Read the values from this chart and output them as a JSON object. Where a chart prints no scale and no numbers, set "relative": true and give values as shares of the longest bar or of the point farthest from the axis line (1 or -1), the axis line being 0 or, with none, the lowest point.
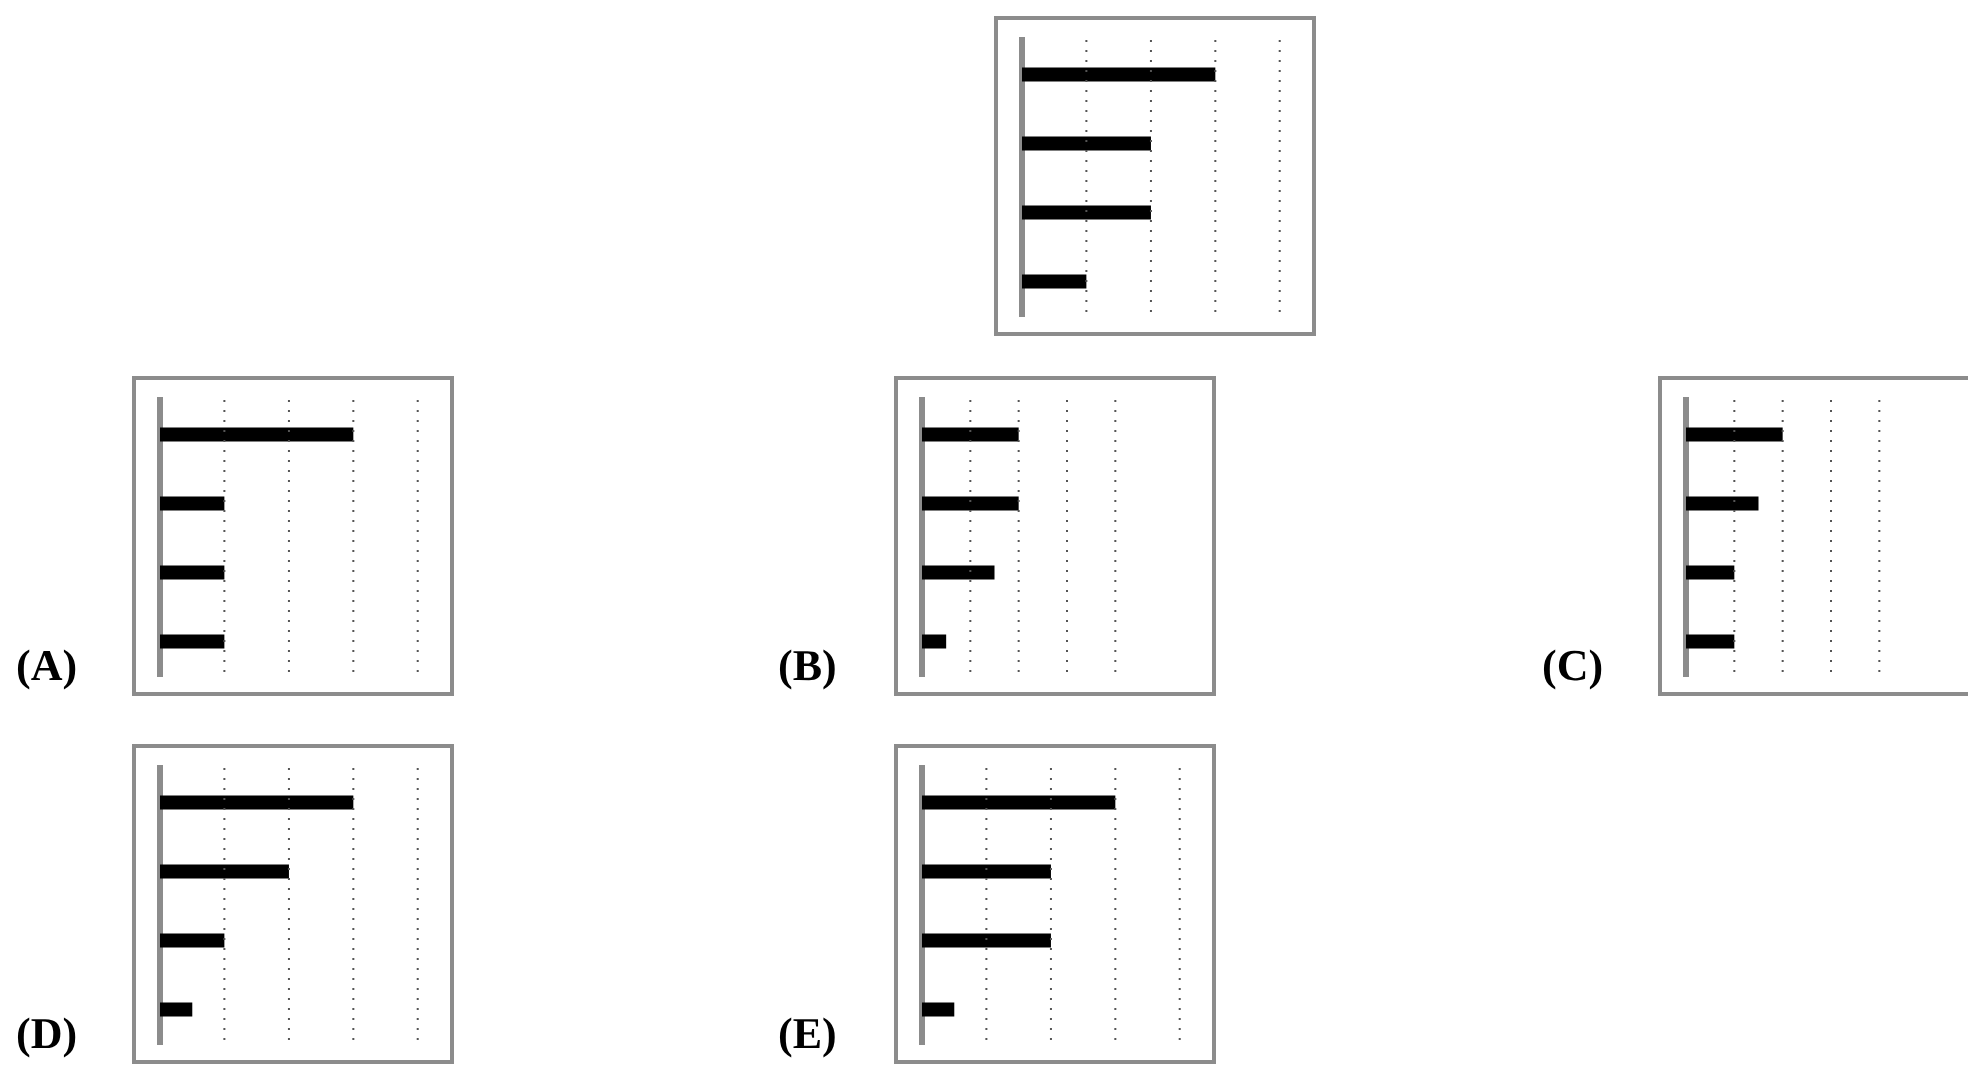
{
  "chart_data": [
    {
      "type": "bar",
      "orientation": "horizontal",
      "relative": true,
      "categories": [
        null,
        null,
        null,
        null
      ],
      "color": "#000000",
      "values": [
        1,
        0.667,
        0.667,
        0.333
      ],
      "ref_lines": [
        {
          "axis": "x",
          "value": 0.333,
          "line_style": "dotted",
          "color": "#555555"
        },
        {
          "axis": "x",
          "value": 0.667,
          "line_style": "dotted",
          "color": "#555555"
        },
        {
          "axis": "x",
          "value": 1,
          "line_style": "dotted",
          "color": "#555555"
        },
        {
          "axis": "x",
          "value": 1.333,
          "line_style": "dotted",
          "color": "#555555"
        }
      ]
    },
    {
      "type": "bar",
      "orientation": "horizontal",
      "relative": true,
      "title": "(A)",
      "categories": [
        null,
        null,
        null,
        null
      ],
      "color": "#000000",
      "values": [
        1,
        0.333,
        0.333,
        0.333
      ],
      "ref_lines": [
        {
          "axis": "x",
          "value": 0.333,
          "line_style": "dotted",
          "color": "#555555"
        },
        {
          "axis": "x",
          "value": 0.667,
          "line_style": "dotted",
          "color": "#555555"
        },
        {
          "axis": "x",
          "value": 1,
          "line_style": "dotted",
          "color": "#555555"
        },
        {
          "axis": "x",
          "value": 1.333,
          "line_style": "dotted",
          "color": "#555555"
        }
      ]
    },
    {
      "type": "bar",
      "orientation": "horizontal",
      "relative": true,
      "title": "(B)",
      "categories": [
        null,
        null,
        null,
        null
      ],
      "color": "#000000",
      "values": [
        1,
        1,
        0.75,
        0.25
      ],
      "ref_lines": [
        {
          "axis": "x",
          "value": 0.5,
          "line_style": "dotted",
          "color": "#555555"
        },
        {
          "axis": "x",
          "value": 1,
          "line_style": "dotted",
          "color": "#555555"
        },
        {
          "axis": "x",
          "value": 1.5,
          "line_style": "dotted",
          "color": "#555555"
        },
        {
          "axis": "x",
          "value": 2,
          "line_style": "dotted",
          "color": "#555555"
        }
      ]
    },
    {
      "type": "bar",
      "orientation": "horizontal",
      "relative": true,
      "title": "(C)",
      "categories": [
        null,
        null,
        null,
        null
      ],
      "color": "#000000",
      "values": [
        1,
        0.75,
        0.5,
        0.5
      ],
      "ref_lines": [
        {
          "axis": "x",
          "value": 0.5,
          "line_style": "dotted",
          "color": "#555555"
        },
        {
          "axis": "x",
          "value": 1,
          "line_style": "dotted",
          "color": "#555555"
        },
        {
          "axis": "x",
          "value": 1.5,
          "line_style": "dotted",
          "color": "#555555"
        },
        {
          "axis": "x",
          "value": 2,
          "line_style": "dotted",
          "color": "#555555"
        }
      ]
    },
    {
      "type": "bar",
      "orientation": "horizontal",
      "relative": true,
      "title": "(D)",
      "categories": [
        null,
        null,
        null,
        null
      ],
      "color": "#000000",
      "values": [
        1,
        0.667,
        0.333,
        0.167
      ],
      "ref_lines": [
        {
          "axis": "x",
          "value": 0.333,
          "line_style": "dotted",
          "color": "#555555"
        },
        {
          "axis": "x",
          "value": 0.667,
          "line_style": "dotted",
          "color": "#555555"
        },
        {
          "axis": "x",
          "value": 1,
          "line_style": "dotted",
          "color": "#555555"
        },
        {
          "axis": "x",
          "value": 1.333,
          "line_style": "dotted",
          "color": "#555555"
        }
      ]
    },
    {
      "type": "bar",
      "orientation": "horizontal",
      "relative": true,
      "title": "(E)",
      "categories": [
        null,
        null,
        null,
        null
      ],
      "color": "#000000",
      "values": [
        1,
        0.667,
        0.667,
        0.167
      ],
      "ref_lines": [
        {
          "axis": "x",
          "value": 0.333,
          "line_style": "dotted",
          "color": "#555555"
        },
        {
          "axis": "x",
          "value": 0.667,
          "line_style": "dotted",
          "color": "#555555"
        },
        {
          "axis": "x",
          "value": 1,
          "line_style": "dotted",
          "color": "#555555"
        },
        {
          "axis": "x",
          "value": 1.333,
          "line_style": "dotted",
          "color": "#555555"
        }
      ]
    }
  ]
}
